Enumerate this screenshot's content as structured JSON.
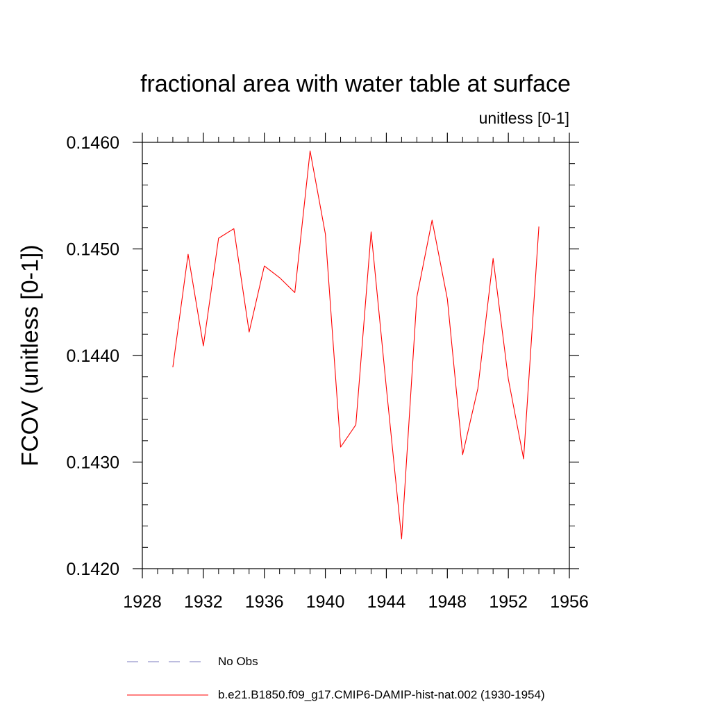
{
  "chart_data": {
    "type": "line",
    "title": "fractional area with water table at surface",
    "units_label": "unitless [0-1]",
    "ylabel": "FCOV  (unitless [0-1])",
    "xlabel": "",
    "xlim": [
      1928,
      1956
    ],
    "ylim": [
      0.142,
      0.146
    ],
    "x_ticks": [
      1928,
      1932,
      1936,
      1940,
      1944,
      1948,
      1952,
      1956
    ],
    "y_ticks": [
      0.142,
      0.143,
      0.144,
      0.145,
      0.146
    ],
    "x_tick_labels": [
      "1928",
      "1932",
      "1936",
      "1940",
      "1944",
      "1948",
      "1952",
      "1956"
    ],
    "y_tick_labels": [
      "0.1420",
      "0.1430",
      "0.1440",
      "0.1450",
      "0.1460"
    ],
    "grid": false,
    "legend_placement": "bottom",
    "legend": [
      {
        "label": "No Obs",
        "style": "dashed",
        "color": "#7b7bbf"
      },
      {
        "label": "b.e21.B1850.f09_g17.CMIP6-DAMIP-hist-nat.002 (1930-1954)",
        "style": "solid",
        "color": "#ff0000"
      }
    ],
    "series": [
      {
        "name": "b.e21.B1850.f09_g17.CMIP6-DAMIP-hist-nat.002 (1930-1954)",
        "color": "#ff0000",
        "x": [
          1930,
          1931,
          1932,
          1933,
          1934,
          1935,
          1936,
          1937,
          1938,
          1939,
          1940,
          1941,
          1942,
          1943,
          1944,
          1945,
          1946,
          1947,
          1948,
          1949,
          1950,
          1951,
          1952,
          1953,
          1954
        ],
        "values": [
          0.14389,
          0.14495,
          0.14409,
          0.1451,
          0.14519,
          0.14422,
          0.14484,
          0.14473,
          0.14459,
          0.14592,
          0.14514,
          0.14314,
          0.14335,
          0.14516,
          0.1437,
          0.14228,
          0.14455,
          0.14527,
          0.14453,
          0.14307,
          0.14369,
          0.14491,
          0.14378,
          0.14303,
          0.14521
        ]
      }
    ]
  }
}
